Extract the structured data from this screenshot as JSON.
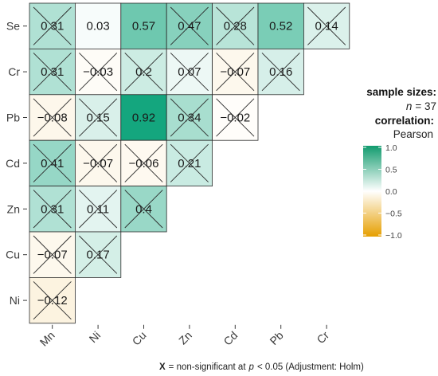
{
  "chart_data": {
    "type": "heatmap",
    "x_labels": [
      "Mn",
      "Ni",
      "Cu",
      "Zn",
      "Cd",
      "Pb",
      "Cr"
    ],
    "y_labels": [
      "Se",
      "Cr",
      "Pb",
      "Cd",
      "Zn",
      "Cu",
      "Ni"
    ],
    "values": [
      [
        0.31,
        0.03,
        0.57,
        0.47,
        0.28,
        0.52,
        0.14
      ],
      [
        0.31,
        -0.03,
        0.2,
        0.07,
        -0.07,
        0.16,
        null
      ],
      [
        -0.08,
        0.15,
        0.92,
        0.34,
        -0.02,
        null,
        null
      ],
      [
        0.41,
        -0.07,
        -0.06,
        0.21,
        null,
        null,
        null
      ],
      [
        0.31,
        0.11,
        0.4,
        null,
        null,
        null,
        null
      ],
      [
        -0.07,
        0.17,
        null,
        null,
        null,
        null,
        null
      ],
      [
        -0.12,
        null,
        null,
        null,
        null,
        null,
        null
      ]
    ],
    "labels": [
      [
        "0.31",
        "0.03",
        "0.57",
        "0.47",
        "0.28",
        "0.52",
        "0.14"
      ],
      [
        "0.31",
        "−0.03",
        "0.2",
        "0.07",
        "−0.07",
        "0.16",
        null
      ],
      [
        "−0.08",
        "0.15",
        "0.92",
        "0.34",
        "−0.02",
        null,
        null
      ],
      [
        "0.41",
        "−0.07",
        "−0.06",
        "0.21",
        null,
        null,
        null
      ],
      [
        "0.31",
        "0.11",
        "0.4",
        null,
        null,
        null,
        null
      ],
      [
        "−0.07",
        "0.17",
        null,
        null,
        null,
        null,
        null
      ],
      [
        "−0.12",
        null,
        null,
        null,
        null,
        null,
        null
      ]
    ],
    "non_significant": [
      [
        true,
        false,
        false,
        true,
        true,
        false,
        true
      ],
      [
        true,
        true,
        true,
        true,
        true,
        true,
        null
      ],
      [
        true,
        true,
        false,
        true,
        true,
        null,
        null
      ],
      [
        true,
        true,
        true,
        true,
        null,
        null,
        null
      ],
      [
        true,
        true,
        true,
        null,
        null,
        null,
        null
      ],
      [
        true,
        true,
        null,
        null,
        null,
        null,
        null
      ],
      [
        true,
        null,
        null,
        null,
        null,
        null,
        null
      ]
    ],
    "color_scale": {
      "low": "#E69F00",
      "mid": "#FFFFFF",
      "high": "#009E73",
      "limits": [
        -1,
        1
      ],
      "ticks": [
        "1.0",
        "0.5",
        "0.0",
        "−0.5",
        "−1.0"
      ]
    },
    "legend": {
      "title_sizes": "sample sizes:",
      "n_label": "n",
      "n_value": "= 37",
      "title_corr": "correlation:",
      "method": "Pearson",
      "position": "right"
    },
    "caption": {
      "marker": "X",
      "text_a": "= non-significant at",
      "p": "p",
      "text_b": "< 0.05 (Adjustment: Holm)"
    }
  }
}
